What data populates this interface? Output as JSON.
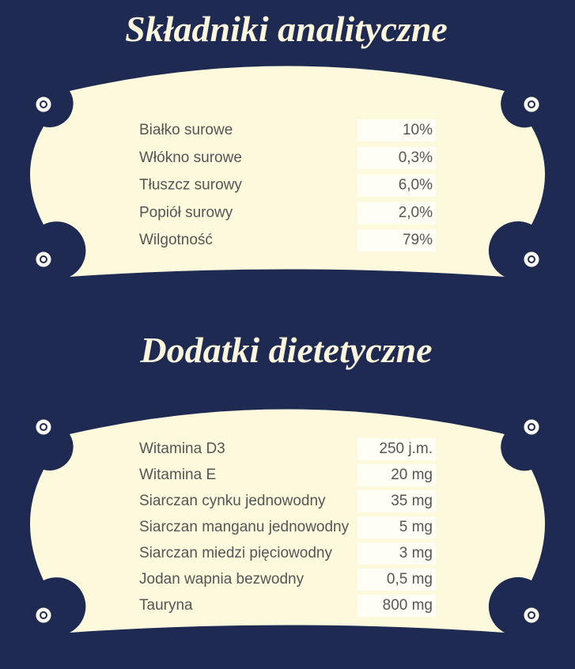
{
  "sections": [
    {
      "title": "Składniki analityczne",
      "rows": [
        [
          "Białko surowe",
          "10%"
        ],
        [
          "Włókno surowe",
          "0,3%"
        ],
        [
          "Tłuszcz surowy",
          "6,0%"
        ],
        [
          "Popiół surowy",
          "2,0%"
        ],
        [
          "Wilgotność",
          "79%"
        ]
      ]
    },
    {
      "title": "Dodatki dietetyczne",
      "rows": [
        [
          "Witamina D3",
          "250 j.m."
        ],
        [
          "Witamina E",
          "20 mg"
        ],
        [
          "Siarczan cynku jednowodny",
          "35 mg"
        ],
        [
          "Siarczan manganu jednowodny",
          "5 mg"
        ],
        [
          "Siarczan miedzi pięciowodny",
          "3 mg"
        ],
        [
          "Jodan wapnia bezwodny",
          "0,5 mg"
        ],
        [
          "Tauryna",
          "800 mg"
        ]
      ]
    }
  ]
}
